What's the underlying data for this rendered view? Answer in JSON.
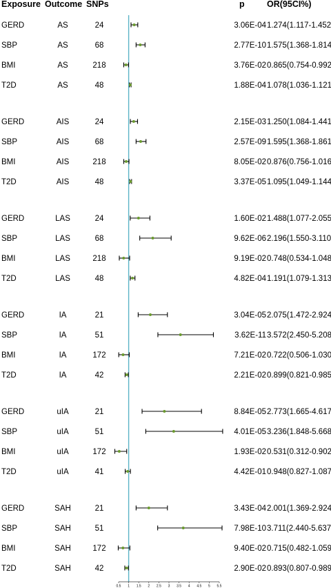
{
  "headers": {
    "exposure": "Exposure",
    "outcome": "Outcome",
    "snps": "SNPs",
    "p": "p",
    "or": "OR(95CI%)"
  },
  "chart_data": {
    "type": "forest",
    "reference_line": 1,
    "xlim": [
      0.5,
      5.5
    ],
    "x_ticks": [
      "0.5",
      "1",
      "1.5",
      "2",
      "2.5",
      "3",
      "3.5",
      "4",
      "4.5",
      "5",
      "5.5"
    ],
    "colors": {
      "reference_line": "#5bb3c6",
      "point": "#6a9a2e",
      "ci_line": "#000000"
    },
    "groups": [
      {
        "outcome": "AS",
        "rows": [
          {
            "exposure": "GERD",
            "outcome": "AS",
            "snps": "24",
            "p": "3.06E-04",
            "or_text": "1.274(1.117-1.452)",
            "or": 1.274,
            "lower": 1.117,
            "upper": 1.452
          },
          {
            "exposure": "SBP",
            "outcome": "AS",
            "snps": "68",
            "p": "2.77E-10",
            "or_text": "1.575(1.368-1.814)",
            "or": 1.575,
            "lower": 1.368,
            "upper": 1.814
          },
          {
            "exposure": "BMI",
            "outcome": "AS",
            "snps": "218",
            "p": "3.76E-02",
            "or_text": "0.865(0.754-0.992)",
            "or": 0.865,
            "lower": 0.754,
            "upper": 0.992
          },
          {
            "exposure": "T2D",
            "outcome": "AS",
            "snps": "48",
            "p": "1.88E-04",
            "or_text": "1.078(1.036-1.121)",
            "or": 1.078,
            "lower": 1.036,
            "upper": 1.121
          }
        ]
      },
      {
        "outcome": "AIS",
        "rows": [
          {
            "exposure": "GERD",
            "outcome": "AIS",
            "snps": "24",
            "p": "2.15E-03",
            "or_text": "1.250(1.084-1.441)",
            "or": 1.25,
            "lower": 1.084,
            "upper": 1.441
          },
          {
            "exposure": "SBP",
            "outcome": "AIS",
            "snps": "68",
            "p": "2.57E-09",
            "or_text": "1.595(1.368-1.861)",
            "or": 1.595,
            "lower": 1.368,
            "upper": 1.861
          },
          {
            "exposure": "BMI",
            "outcome": "AIS",
            "snps": "218",
            "p": "8.05E-02",
            "or_text": "0.876(0.756-1.016)",
            "or": 0.876,
            "lower": 0.756,
            "upper": 1.016
          },
          {
            "exposure": "T2D",
            "outcome": "AIS",
            "snps": "48",
            "p": "3.37E-05",
            "or_text": "1.095(1.049-1.144)",
            "or": 1.095,
            "lower": 1.049,
            "upper": 1.144
          }
        ]
      },
      {
        "outcome": "LAS",
        "rows": [
          {
            "exposure": "GERD",
            "outcome": "LAS",
            "snps": "24",
            "p": "1.60E-02",
            "or_text": "1.488(1.077-2.055)",
            "or": 1.488,
            "lower": 1.077,
            "upper": 2.055
          },
          {
            "exposure": "SBP",
            "outcome": "LAS",
            "snps": "68",
            "p": "9.62E-06",
            "or_text": "2.196(1.550-3.110)",
            "or": 2.196,
            "lower": 1.55,
            "upper": 3.11
          },
          {
            "exposure": "BMI",
            "outcome": "LAS",
            "snps": "218",
            "p": "9.19E-02",
            "or_text": "0.748(0.534-1.048)",
            "or": 0.748,
            "lower": 0.534,
            "upper": 1.048
          },
          {
            "exposure": "T2D",
            "outcome": "LAS",
            "snps": "48",
            "p": "4.82E-04",
            "or_text": "1.191(1.079-1.313)",
            "or": 1.191,
            "lower": 1.079,
            "upper": 1.313
          }
        ]
      },
      {
        "outcome": "IA",
        "rows": [
          {
            "exposure": "GERD",
            "outcome": "IA",
            "snps": "21",
            "p": "3.04E-05",
            "or_text": "2.075(1.472-2.924)",
            "or": 2.075,
            "lower": 1.472,
            "upper": 2.924
          },
          {
            "exposure": "SBP",
            "outcome": "IA",
            "snps": "51",
            "p": "3.62E-11",
            "or_text": "3.572(2.450-5.208)",
            "or": 3.572,
            "lower": 2.45,
            "upper": 5.208
          },
          {
            "exposure": "BMI",
            "outcome": "IA",
            "snps": "172",
            "p": "7.21E-02",
            "or_text": "0.722(0.506-1.030)",
            "or": 0.722,
            "lower": 0.506,
            "upper": 1.03
          },
          {
            "exposure": "T2D",
            "outcome": "IA",
            "snps": "42",
            "p": "2.21E-02",
            "or_text": "0.899(0.821-0.985)",
            "or": 0.899,
            "lower": 0.821,
            "upper": 0.985
          }
        ]
      },
      {
        "outcome": "uIA",
        "rows": [
          {
            "exposure": "GERD",
            "outcome": "uIA",
            "snps": "21",
            "p": "8.84E-05",
            "or_text": "2.773(1.665-4.617)",
            "or": 2.773,
            "lower": 1.665,
            "upper": 4.617
          },
          {
            "exposure": "SBP",
            "outcome": "uIA",
            "snps": "51",
            "p": "4.01E-05",
            "or_text": "3.236(1.848-5.668)",
            "or": 3.236,
            "lower": 1.848,
            "upper": 5.668
          },
          {
            "exposure": "BMI",
            "outcome": "uIA",
            "snps": "172",
            "p": "1.93E-02",
            "or_text": "0.531(0.312-0.902)",
            "or": 0.531,
            "lower": 0.312,
            "upper": 0.902
          },
          {
            "exposure": "T2D",
            "outcome": "uIA",
            "snps": "41",
            "p": "4.42E-01",
            "or_text": "0.948(0.827-1.087)",
            "or": 0.948,
            "lower": 0.827,
            "upper": 1.087
          }
        ]
      },
      {
        "outcome": "SAH",
        "rows": [
          {
            "exposure": "GERD",
            "outcome": "SAH",
            "snps": "21",
            "p": "3.43E-04",
            "or_text": "2.001(1.369-2.924)",
            "or": 2.001,
            "lower": 1.369,
            "upper": 2.924
          },
          {
            "exposure": "SBP",
            "outcome": "SAH",
            "snps": "51",
            "p": "7.98E-10",
            "or_text": "3.711(2.440-5.637)",
            "or": 3.711,
            "lower": 2.44,
            "upper": 5.637
          },
          {
            "exposure": "BMI",
            "outcome": "SAH",
            "snps": "172",
            "p": "9.40E-02",
            "or_text": "0.715(0.482-1.059)",
            "or": 0.715,
            "lower": 0.482,
            "upper": 1.059
          },
          {
            "exposure": "T2D",
            "outcome": "SAH",
            "snps": "42",
            "p": "2.90E-02",
            "or_text": "0.893(0.807-0.989)",
            "or": 0.893,
            "lower": 0.807,
            "upper": 0.989
          }
        ]
      }
    ]
  }
}
